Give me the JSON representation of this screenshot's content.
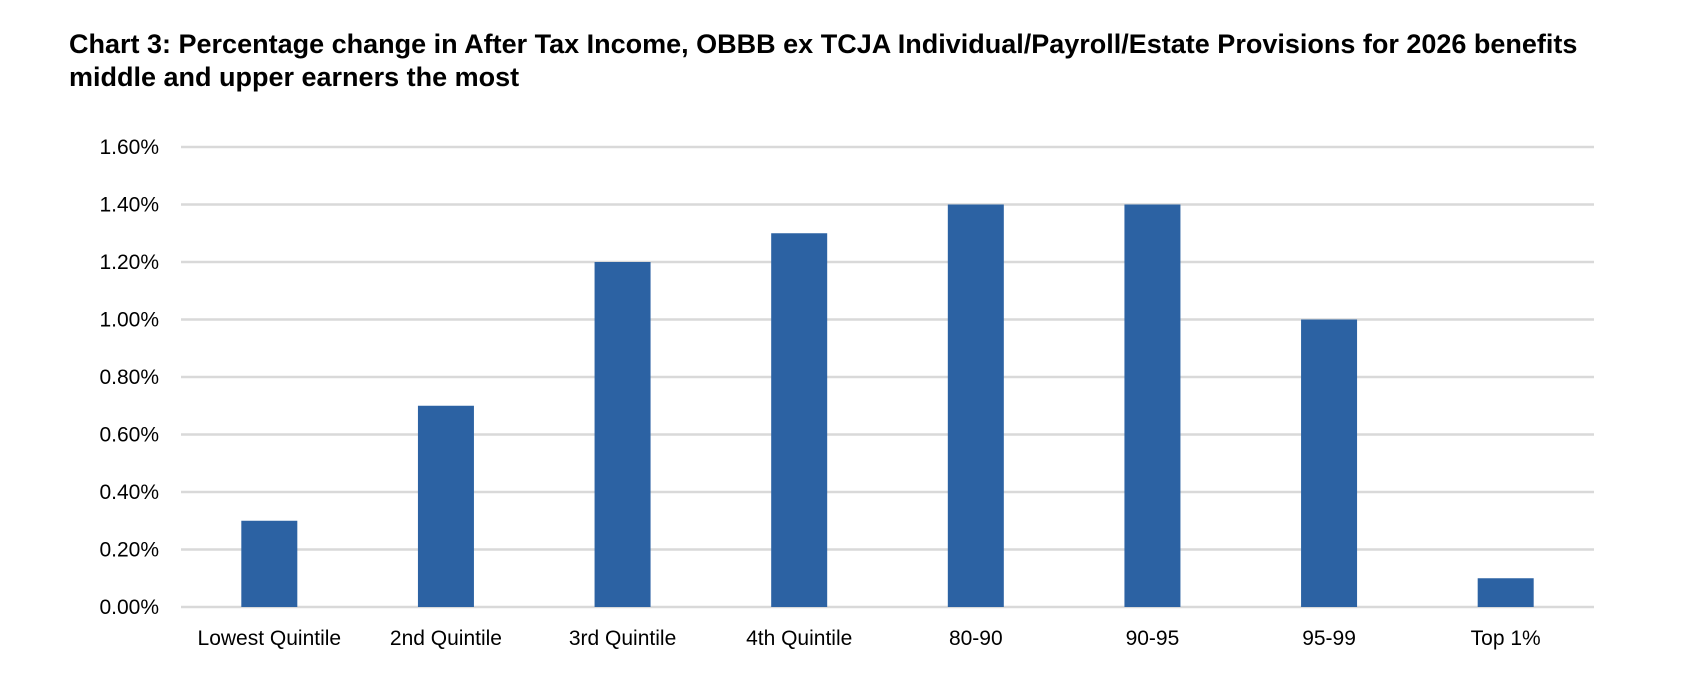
{
  "chart_data": {
    "type": "bar",
    "title": "Chart 3: Percentage change in After Tax Income, OBBB ex TCJA Individual/Payroll/Estate Provisions for 2026 benefits middle and upper earners the most",
    "categories": [
      "Lowest Quintile",
      "2nd Quintile",
      "3rd Quintile",
      "4th Quintile",
      "80-90",
      "90-95",
      "95-99",
      "Top 1%"
    ],
    "values": [
      0.3,
      0.7,
      1.2,
      1.3,
      1.4,
      1.4,
      1.0,
      0.1
    ],
    "value_unit": "percent",
    "xlabel": "",
    "ylabel": "",
    "ylim": [
      0,
      1.6
    ],
    "yticks": [
      0,
      0.2,
      0.4,
      0.6,
      0.8,
      1.0,
      1.2,
      1.4,
      1.6
    ],
    "ytick_labels": [
      "0.00%",
      "0.20%",
      "0.40%",
      "0.60%",
      "0.80%",
      "1.00%",
      "1.20%",
      "1.40%",
      "1.60%"
    ],
    "grid": true,
    "legend": "none",
    "colors": {
      "bar": "#2C62A3",
      "grid": "#D9D9D9",
      "axis": "#D9D9D9"
    }
  }
}
